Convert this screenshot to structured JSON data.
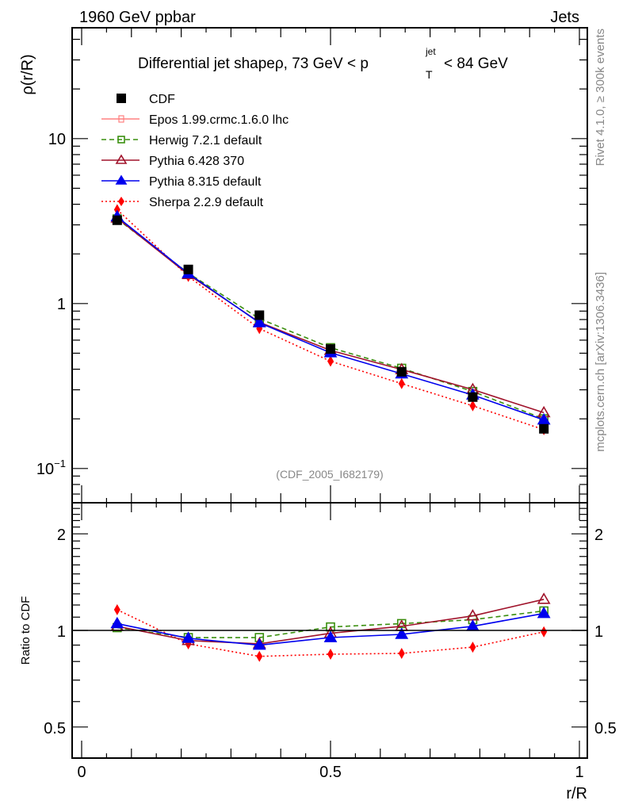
{
  "chart_data": {
    "type": "line",
    "header_left": "1960 GeV ppbar",
    "header_right": "Jets",
    "title_main": "Differential jet shapeρ, 73 GeV < p",
    "title_sup": "jet",
    "title_sub": "T",
    "title_tail": "< 84 GeV",
    "ylabel": "ρ(r/R)",
    "ratio_ylabel": "Ratio to CDF",
    "xlabel": "r/R",
    "analysis_tag": "(CDF_2005_I682179)",
    "side_text_top": "Rivet 4.1.0, ≥ 300k events",
    "side_text_bottom": "mcplots.cern.ch [arXiv:1306.3436]",
    "xlim": [
      0,
      1
    ],
    "ylim": [
      0.062,
      47
    ],
    "yscale": "log",
    "ratio_ylim": [
      0.4,
      2.5
    ],
    "ratio_yscale": "log",
    "xticks": [
      {
        "v": 0,
        "label": "0"
      },
      {
        "v": 0.5,
        "label": "0.5"
      },
      {
        "v": 1,
        "label": "1"
      }
    ],
    "yticks": [
      {
        "v": 10,
        "label": "10"
      },
      {
        "v": 1,
        "label": "1"
      },
      {
        "v": 0.1,
        "label": "10",
        "sup": "−1"
      }
    ],
    "ratio_yticks": [
      {
        "v": 2,
        "label": "2"
      },
      {
        "v": 1,
        "label": "1"
      },
      {
        "v": 0.5,
        "label": "0.5"
      }
    ],
    "x": [
      0.0714,
      0.2143,
      0.3571,
      0.5,
      0.6429,
      0.7857,
      0.9286
    ],
    "legend_position": "top-left",
    "series": [
      {
        "name": "CDF",
        "color": "#000000",
        "marker": "square-filled",
        "dash": "none",
        "is_reference": true,
        "values": [
          3.2,
          1.61,
          0.85,
          0.53,
          0.386,
          0.271,
          0.174
        ]
      },
      {
        "name": "Epos 1.99.crmc.1.6.0 lhc",
        "color": "#ff8080",
        "marker": "cross-open",
        "dash": "solid",
        "in_plot": false,
        "values": [],
        "ratio": []
      },
      {
        "name": "Herwig 7.2.1 default",
        "color": "#3a8f0e",
        "marker": "square-open",
        "dash": "dashed",
        "values": [
          3.26,
          1.53,
          0.81,
          0.54,
          0.405,
          0.293,
          0.2
        ],
        "ratio": [
          1.02,
          0.95,
          0.95,
          1.025,
          1.05,
          1.08,
          1.15
        ]
      },
      {
        "name": "Pythia 6.428 370",
        "color": "#a0132b",
        "marker": "triangle-open",
        "dash": "solid",
        "values": [
          3.3,
          1.5,
          0.77,
          0.52,
          0.398,
          0.301,
          0.218
        ],
        "ratio": [
          1.03,
          0.93,
          0.908,
          0.98,
          1.03,
          1.11,
          1.25
        ]
      },
      {
        "name": "Pythia 8.315 default",
        "color": "#0000ee",
        "marker": "triangle-filled",
        "dash": "solid",
        "values": [
          3.36,
          1.52,
          0.765,
          0.503,
          0.375,
          0.279,
          0.197
        ],
        "ratio": [
          1.05,
          0.945,
          0.9,
          0.95,
          0.972,
          1.03,
          1.13
        ]
      },
      {
        "name": "Sherpa 2.2.9 default",
        "color": "#ff0000",
        "marker": "diamond-filled",
        "dash": "dotted",
        "values": [
          3.71,
          1.46,
          0.705,
          0.447,
          0.327,
          0.24,
          0.172
        ],
        "ratio": [
          1.16,
          0.908,
          0.83,
          0.843,
          0.848,
          0.887,
          0.99
        ]
      }
    ]
  }
}
